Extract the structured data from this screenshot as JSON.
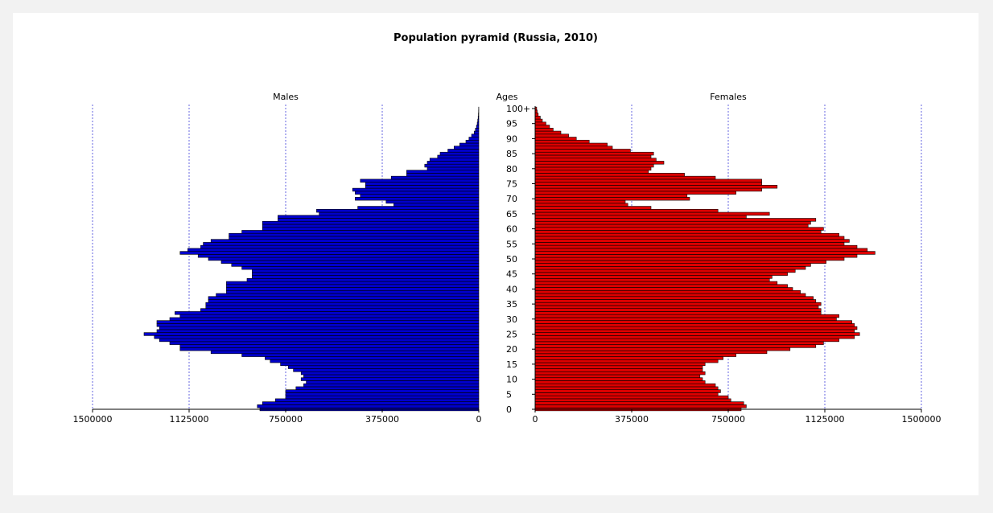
{
  "chart_data": [
    {
      "type": "bar",
      "orientation": "horizontal",
      "title": "Population pyramid (Russia, 2010)",
      "ages_label": "Ages",
      "age_ticks": [
        "0",
        "5",
        "10",
        "15",
        "20",
        "25",
        "30",
        "35",
        "40",
        "45",
        "50",
        "55",
        "60",
        "65",
        "70",
        "75",
        "80",
        "85",
        "90",
        "95",
        "100+"
      ],
      "males": {
        "title": "Males",
        "color": "#0000cc",
        "xlim": [
          1500000,
          0
        ],
        "ticks": [
          1500000,
          1125000,
          750000,
          375000,
          0
        ],
        "tick_labels": [
          "1500000",
          "1125000",
          "750000",
          "375000",
          "0"
        ],
        "values": [
          850000,
          860000,
          840000,
          790000,
          750000,
          750000,
          750000,
          710000,
          680000,
          670000,
          690000,
          680000,
          690000,
          720000,
          740000,
          770000,
          810000,
          830000,
          920000,
          1040000,
          1160000,
          1160000,
          1200000,
          1240000,
          1260000,
          1300000,
          1250000,
          1240000,
          1250000,
          1250000,
          1200000,
          1160000,
          1180000,
          1080000,
          1060000,
          1060000,
          1050000,
          1050000,
          1020000,
          980000,
          980000,
          980000,
          980000,
          900000,
          880000,
          880000,
          880000,
          920000,
          960000,
          1000000,
          1050000,
          1090000,
          1160000,
          1130000,
          1080000,
          1070000,
          1040000,
          970000,
          970000,
          920000,
          840000,
          840000,
          840000,
          780000,
          780000,
          620000,
          630000,
          470000,
          330000,
          360000,
          480000,
          460000,
          480000,
          490000,
          440000,
          440000,
          460000,
          340000,
          280000,
          280000,
          200000,
          210000,
          200000,
          190000,
          160000,
          150000,
          120000,
          96000,
          74000,
          50000,
          38000,
          28000,
          18000,
          13000,
          9000,
          6000,
          4000,
          2500,
          1500,
          800,
          500
        ]
      },
      "females": {
        "title": "Females",
        "color": "#dd0000",
        "xlim": [
          0,
          1500000
        ],
        "ticks": [
          0,
          375000,
          750000,
          1125000,
          1500000
        ],
        "tick_labels": [
          "0",
          "375000",
          "750000",
          "1125000",
          "1500000"
        ],
        "values": [
          800000,
          820000,
          810000,
          760000,
          750000,
          710000,
          720000,
          710000,
          700000,
          660000,
          650000,
          640000,
          660000,
          650000,
          650000,
          660000,
          710000,
          730000,
          780000,
          900000,
          990000,
          1090000,
          1120000,
          1180000,
          1240000,
          1260000,
          1240000,
          1250000,
          1240000,
          1230000,
          1170000,
          1180000,
          1110000,
          1110000,
          1100000,
          1110000,
          1090000,
          1080000,
          1050000,
          1030000,
          1000000,
          980000,
          940000,
          910000,
          920000,
          980000,
          1010000,
          1050000,
          1070000,
          1130000,
          1200000,
          1250000,
          1320000,
          1290000,
          1250000,
          1200000,
          1220000,
          1200000,
          1180000,
          1110000,
          1120000,
          1060000,
          1070000,
          1090000,
          820000,
          910000,
          710000,
          450000,
          360000,
          350000,
          600000,
          590000,
          780000,
          880000,
          940000,
          880000,
          880000,
          700000,
          580000,
          440000,
          450000,
          460000,
          500000,
          470000,
          450000,
          460000,
          370000,
          300000,
          280000,
          210000,
          160000,
          130000,
          100000,
          70000,
          56000,
          42000,
          28000,
          20000,
          12000,
          8000,
          6000
        ]
      }
    }
  ]
}
